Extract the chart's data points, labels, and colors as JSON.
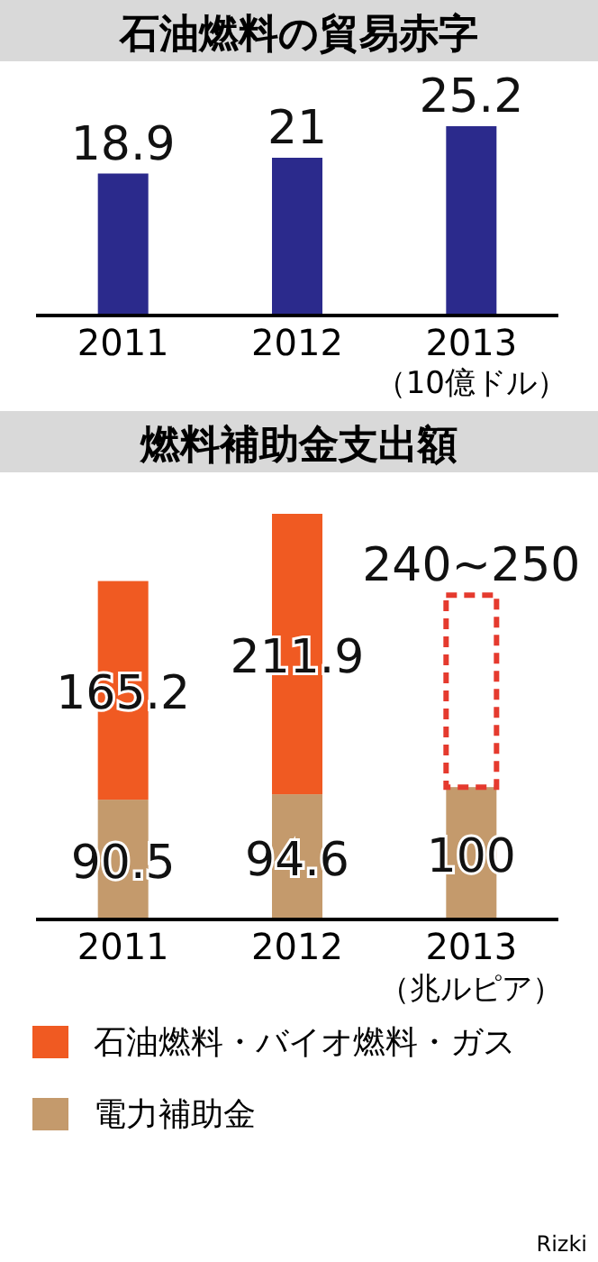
{
  "chart_data": [
    {
      "type": "bar",
      "title": "石油燃料の貿易赤字",
      "categories": [
        "2011",
        "2012",
        "2013"
      ],
      "values": [
        18.9,
        21,
        25.2
      ],
      "color": "#2b2a8c",
      "data_labels": true,
      "annotations": [
        "（10億ドル）"
      ]
    },
    {
      "type": "bar",
      "title": "燃料補助金支出額",
      "categories": [
        "2011",
        "2012",
        "2013"
      ],
      "stacked": true,
      "legend": "bottom",
      "series": [
        {
          "name": "電力補助金",
          "color": "#c49a6c",
          "values": [
            90.5,
            94.6,
            100
          ],
          "value_labels": [
            "90.5",
            "94.6",
            "100"
          ]
        },
        {
          "name": "石油燃料・バイオ燃料・ガス",
          "color": "#f05a22",
          "values": [
            165.2,
            211.9,
            null
          ],
          "value_labels": [
            "165.2",
            "211.9",
            null
          ]
        },
        {
          "color": "#e53a2e",
          "line_style": "dashed",
          "values": [
            null,
            null,
            145
          ]
        }
      ],
      "annotations": [
        "（兆ルピア）",
        "Rizki",
        {
          "text": "240~250",
          "x": "2013",
          "y": 245
        }
      ]
    }
  ]
}
